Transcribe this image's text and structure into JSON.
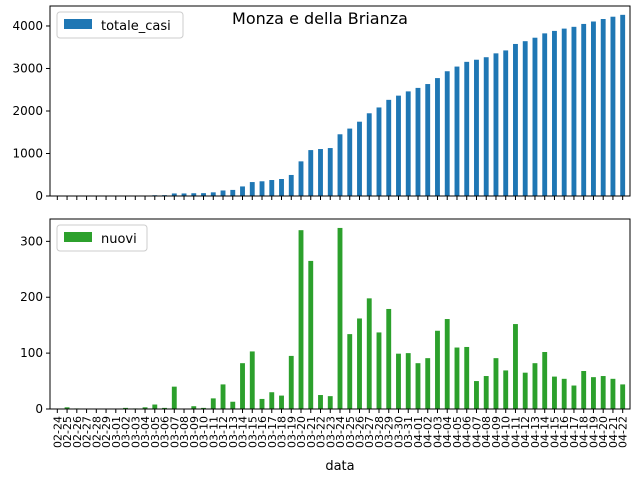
{
  "chart_data": {
    "type": "bar",
    "title": "Monza e della Brianza",
    "xlabel": "data",
    "categories": [
      "02-24",
      "02-25",
      "02-26",
      "02-27",
      "02-28",
      "02-29",
      "03-01",
      "03-02",
      "03-03",
      "03-04",
      "03-05",
      "03-06",
      "03-07",
      "03-08",
      "03-09",
      "03-10",
      "03-11",
      "03-12",
      "03-13",
      "03-14",
      "03-15",
      "03-16",
      "03-17",
      "03-18",
      "03-19",
      "03-20",
      "03-21",
      "03-22",
      "03-23",
      "03-24",
      "03-25",
      "03-26",
      "03-27",
      "03-28",
      "03-29",
      "03-30",
      "03-31",
      "04-01",
      "04-02",
      "04-03",
      "04-04",
      "04-05",
      "04-06",
      "04-07",
      "04-08",
      "04-09",
      "04-10",
      "04-11",
      "04-12",
      "04-13",
      "04-14",
      "04-15",
      "04-16",
      "04-17",
      "04-18",
      "04-19",
      "04-20",
      "04-21",
      "04-22"
    ],
    "panels": [
      {
        "series": [
          {
            "name": "totale_casi",
            "color": "#1f77b4",
            "values": [
              0,
              3,
              4,
              4,
              4,
              4,
              4,
              6,
              7,
              10,
              18,
              20,
              60,
              60,
              65,
              67,
              86,
              130,
              143,
              225,
              328,
              346,
              376,
              400,
              495,
              815,
              1080,
              1105,
              1128,
              1452,
              1586,
              1748,
              1946,
              2083,
              2262,
              2361,
              2461,
              2543,
              2634,
              2774,
              2935,
              3045,
              3156,
              3206,
              3265,
              3356,
              3425,
              3577,
              3642,
              3724,
              3826,
              3884,
              3938,
              3980,
              4048,
              4105,
              4164,
              4218,
              4262
            ]
          }
        ],
        "ylim": [
          0,
          4470
        ],
        "yticks": [
          0,
          1000,
          2000,
          3000,
          4000
        ],
        "legend": "top-left"
      },
      {
        "series": [
          {
            "name": "nuovi",
            "color": "#2ca02c",
            "values": [
              0,
              3,
              1,
              0,
              0,
              0,
              0,
              2,
              1,
              3,
              8,
              2,
              40,
              0,
              5,
              2,
              19,
              44,
              13,
              82,
              103,
              18,
              30,
              24,
              95,
              320,
              265,
              25,
              23,
              324,
              134,
              162,
              198,
              137,
              179,
              99,
              100,
              82,
              91,
              140,
              161,
              110,
              111,
              50,
              59,
              91,
              69,
              152,
              65,
              82,
              102,
              58,
              54,
              42,
              68,
              57,
              59,
              54,
              44
            ]
          }
        ],
        "ylim": [
          0,
          340
        ],
        "yticks": [
          0,
          100,
          200,
          300
        ],
        "legend": "top-left"
      }
    ]
  }
}
